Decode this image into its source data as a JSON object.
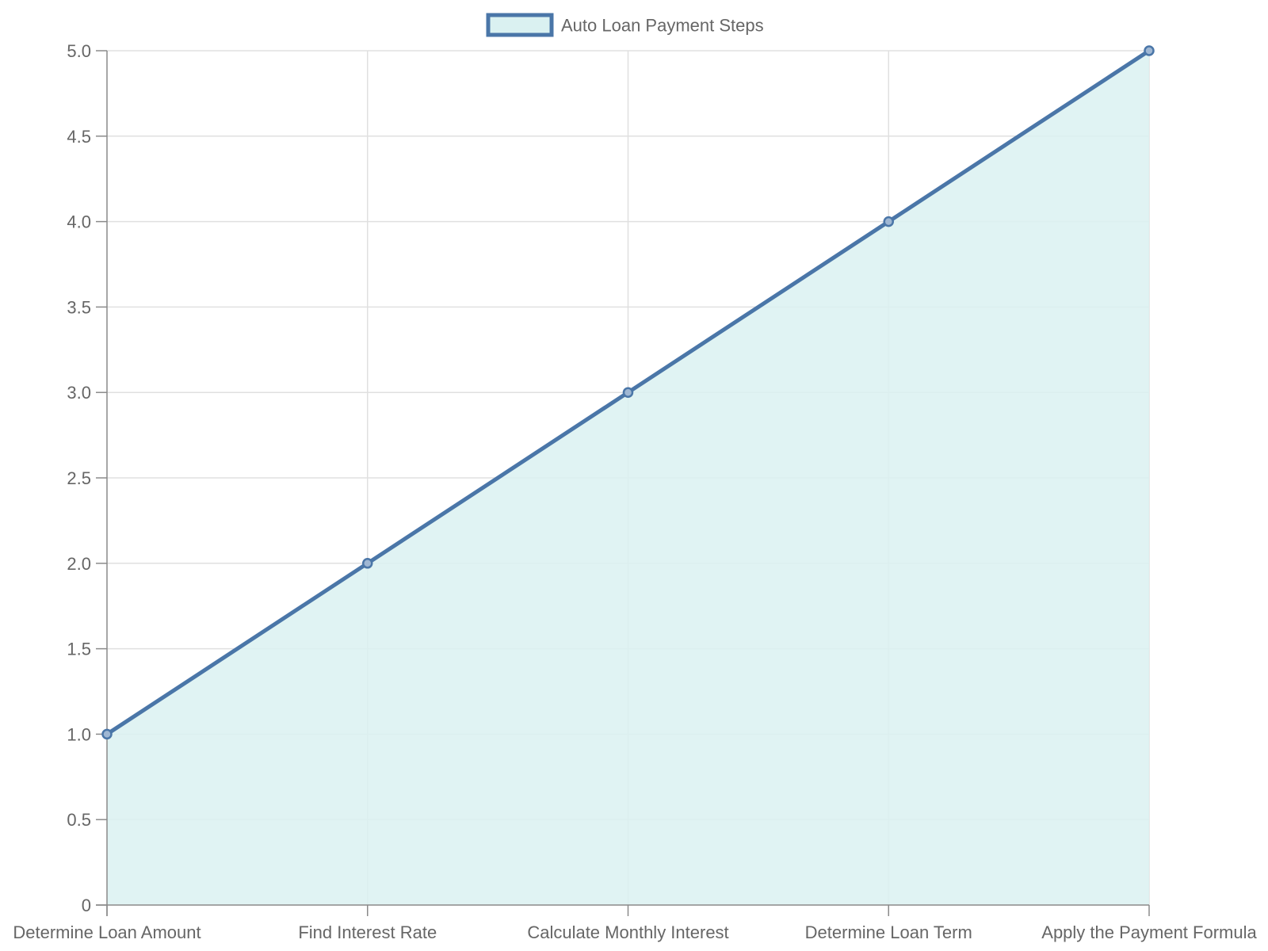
{
  "chart_data": {
    "type": "area",
    "categories": [
      "Determine Loan Amount",
      "Find Interest Rate",
      "Calculate Monthly Interest",
      "Determine Loan Term",
      "Apply the Payment Formula"
    ],
    "series": [
      {
        "name": "Auto Loan Payment Steps",
        "values": [
          1,
          2,
          3,
          4,
          5
        ]
      }
    ],
    "ylim": [
      0,
      5
    ],
    "yticks": [
      "0",
      "0.5",
      "1.0",
      "1.5",
      "2.0",
      "2.5",
      "3.0",
      "3.5",
      "4.0",
      "4.5",
      "5.0"
    ],
    "grid": true,
    "legend_position": "top-center",
    "colors": {
      "line": "#4a76a8",
      "fill": "#daf1f1",
      "grid": "#e0e0e0",
      "axis": "#8a8a8a",
      "text": "#666666"
    }
  }
}
